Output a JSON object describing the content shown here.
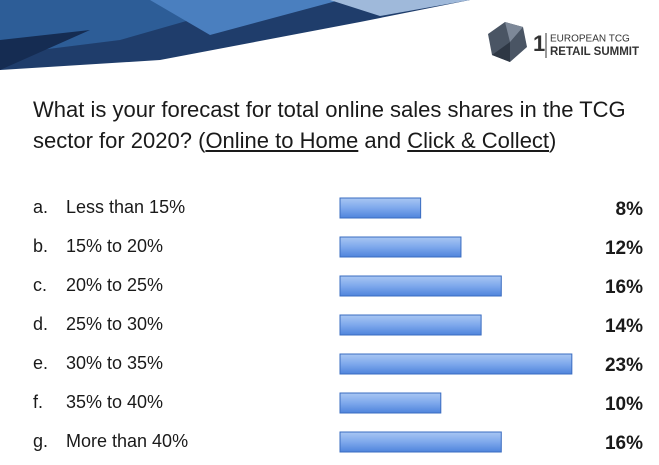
{
  "logo": {
    "number": "1",
    "line1": "EUROPEAN TCG",
    "line2": "RETAIL SUMMIT"
  },
  "chart_data": {
    "type": "bar",
    "orientation": "horizontal",
    "title_parts": [
      {
        "text": "What is your forecast for total online sales shares in the TCG sector for 2020? (",
        "underline": false
      },
      {
        "text": "Online to Home",
        "underline": true
      },
      {
        "text": " and ",
        "underline": false
      },
      {
        "text": "Click & Collect",
        "underline": true
      },
      {
        "text": ")",
        "underline": false
      }
    ],
    "letters": [
      "a.",
      "b.",
      "c.",
      "d.",
      "e.",
      "f.",
      "g."
    ],
    "categories": [
      "Less than 15%",
      "15% to 20%",
      "20% to 25%",
      "25% to 30%",
      "30% to 35%",
      "35% to 40%",
      "More than 40%"
    ],
    "values": [
      8,
      12,
      16,
      14,
      23,
      10,
      16
    ],
    "value_labels": [
      "8%",
      "12%",
      "16%",
      "14%",
      "23%",
      "10%",
      "16%"
    ],
    "color": "#5b8fe0"
  }
}
